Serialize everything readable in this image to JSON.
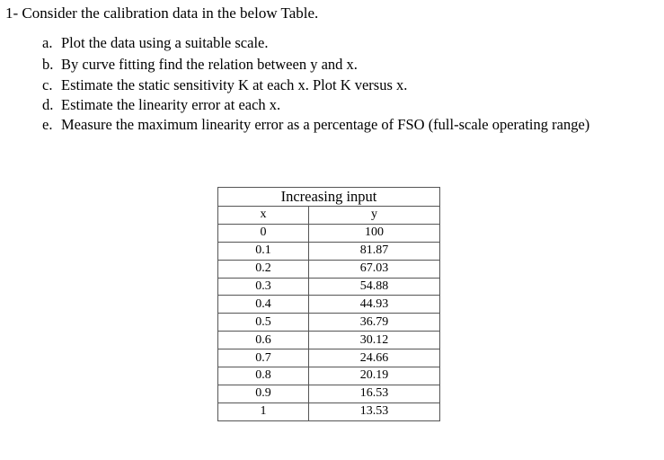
{
  "title": "1- Consider the calibration data in the below Table.",
  "items": [
    {
      "letter": "a.",
      "text": "Plot the data using a suitable scale."
    },
    {
      "letter": "b.",
      "text": "By curve fitting find the relation between y and x."
    },
    {
      "letter": "c.",
      "text": "Estimate the static sensitivity K at each x. Plot K versus x."
    },
    {
      "letter": "d.",
      "text": "Estimate the linearity error at each x."
    },
    {
      "letter": "e.",
      "text": "Measure the maximum linearity error as a percentage of FSO (full-scale operating range)"
    }
  ],
  "table": {
    "header": "Increasing input",
    "columns": [
      "x",
      "y"
    ],
    "rows": [
      [
        "0",
        "100"
      ],
      [
        "0.1",
        "81.87"
      ],
      [
        "0.2",
        "67.03"
      ],
      [
        "0.3",
        "54.88"
      ],
      [
        "0.4",
        "44.93"
      ],
      [
        "0.5",
        "36.79"
      ],
      [
        "0.6",
        "30.12"
      ],
      [
        "0.7",
        "24.66"
      ],
      [
        "0.8",
        "20.19"
      ],
      [
        "0.9",
        "16.53"
      ],
      [
        "1",
        "13.53"
      ]
    ]
  }
}
